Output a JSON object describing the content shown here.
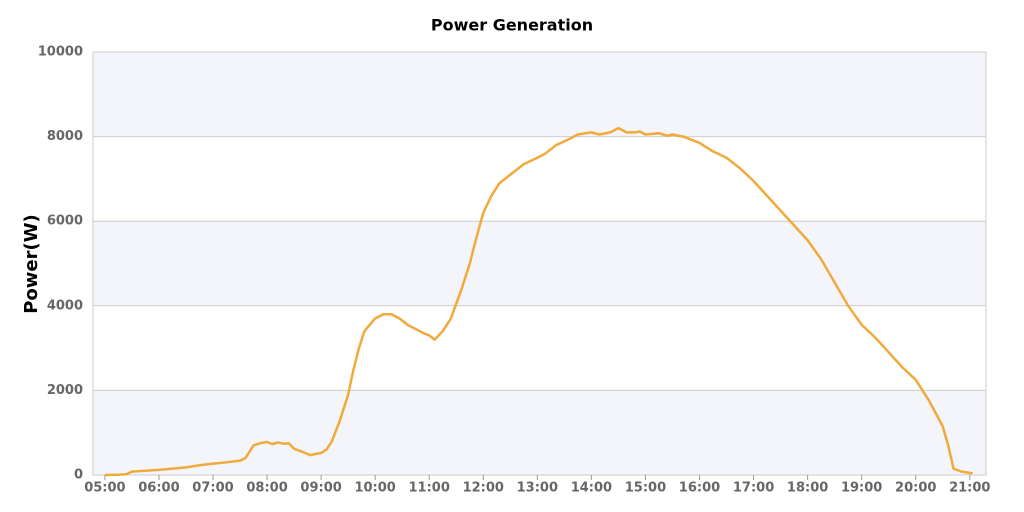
{
  "chart_data": {
    "type": "line",
    "title": "Power Generation",
    "y_label": "Power(W)",
    "x": [
      5.0,
      5.25,
      5.4,
      5.5,
      5.75,
      6.0,
      6.25,
      6.5,
      6.75,
      7.0,
      7.25,
      7.5,
      7.6,
      7.75,
      7.9,
      8.0,
      8.1,
      8.2,
      8.3,
      8.4,
      8.5,
      8.65,
      8.8,
      8.9,
      9.0,
      9.1,
      9.2,
      9.35,
      9.5,
      9.6,
      9.7,
      9.8,
      10.0,
      10.15,
      10.3,
      10.45,
      10.6,
      10.75,
      10.9,
      11.0,
      11.1,
      11.25,
      11.4,
      11.5,
      11.6,
      11.75,
      11.85,
      12.0,
      12.15,
      12.3,
      12.5,
      12.75,
      13.0,
      13.15,
      13.35,
      13.6,
      13.75,
      14.0,
      14.15,
      14.35,
      14.5,
      14.65,
      14.8,
      14.9,
      15.0,
      15.25,
      15.4,
      15.5,
      15.7,
      16.0,
      16.25,
      16.5,
      16.75,
      17.0,
      17.25,
      17.5,
      17.75,
      18.0,
      18.25,
      18.5,
      18.75,
      19.0,
      19.25,
      19.5,
      19.75,
      20.0,
      20.25,
      20.5,
      20.6,
      20.7,
      20.85,
      21.0,
      21.05
    ],
    "series": [
      {
        "name": "Power",
        "color": "#f2a93b",
        "values": [
          0,
          5,
          20,
          80,
          100,
          120,
          150,
          180,
          230,
          270,
          300,
          340,
          400,
          700,
          760,
          780,
          730,
          770,
          740,
          750,
          620,
          550,
          470,
          500,
          520,
          600,
          800,
          1300,
          1900,
          2500,
          3000,
          3400,
          3700,
          3800,
          3800,
          3700,
          3550,
          3450,
          3350,
          3300,
          3200,
          3400,
          3700,
          4050,
          4400,
          5000,
          5500,
          6200,
          6600,
          6900,
          7100,
          7350,
          7500,
          7600,
          7800,
          7950,
          8050,
          8100,
          8050,
          8100,
          8200,
          8100,
          8100,
          8120,
          8050,
          8080,
          8020,
          8050,
          8000,
          7850,
          7650,
          7500,
          7250,
          6950,
          6600,
          6250,
          5900,
          5550,
          5100,
          4550,
          4000,
          3550,
          3250,
          2900,
          2550,
          2250,
          1750,
          1150,
          700,
          150,
          80,
          50,
          40
        ]
      }
    ],
    "xlim": [
      4.78,
      21.3
    ],
    "xticks": [
      {
        "value": 5,
        "label": "05:00"
      },
      {
        "value": 6,
        "label": "06:00"
      },
      {
        "value": 7,
        "label": "07:00"
      },
      {
        "value": 8,
        "label": "08:00"
      },
      {
        "value": 9,
        "label": "09:00"
      },
      {
        "value": 10,
        "label": "10:00"
      },
      {
        "value": 11,
        "label": "11:00"
      },
      {
        "value": 12,
        "label": "12:00"
      },
      {
        "value": 13,
        "label": "13:00"
      },
      {
        "value": 14,
        "label": "14:00"
      },
      {
        "value": 15,
        "label": "15:00"
      },
      {
        "value": 16,
        "label": "16:00"
      },
      {
        "value": 17,
        "label": "17:00"
      },
      {
        "value": 18,
        "label": "18:00"
      },
      {
        "value": 19,
        "label": "19:00"
      },
      {
        "value": 20,
        "label": "20:00"
      },
      {
        "value": 21,
        "label": "21:00"
      }
    ],
    "ylim": [
      0,
      10000
    ],
    "yticks": [
      0,
      2000,
      4000,
      6000,
      8000,
      10000
    ],
    "grid": true
  }
}
